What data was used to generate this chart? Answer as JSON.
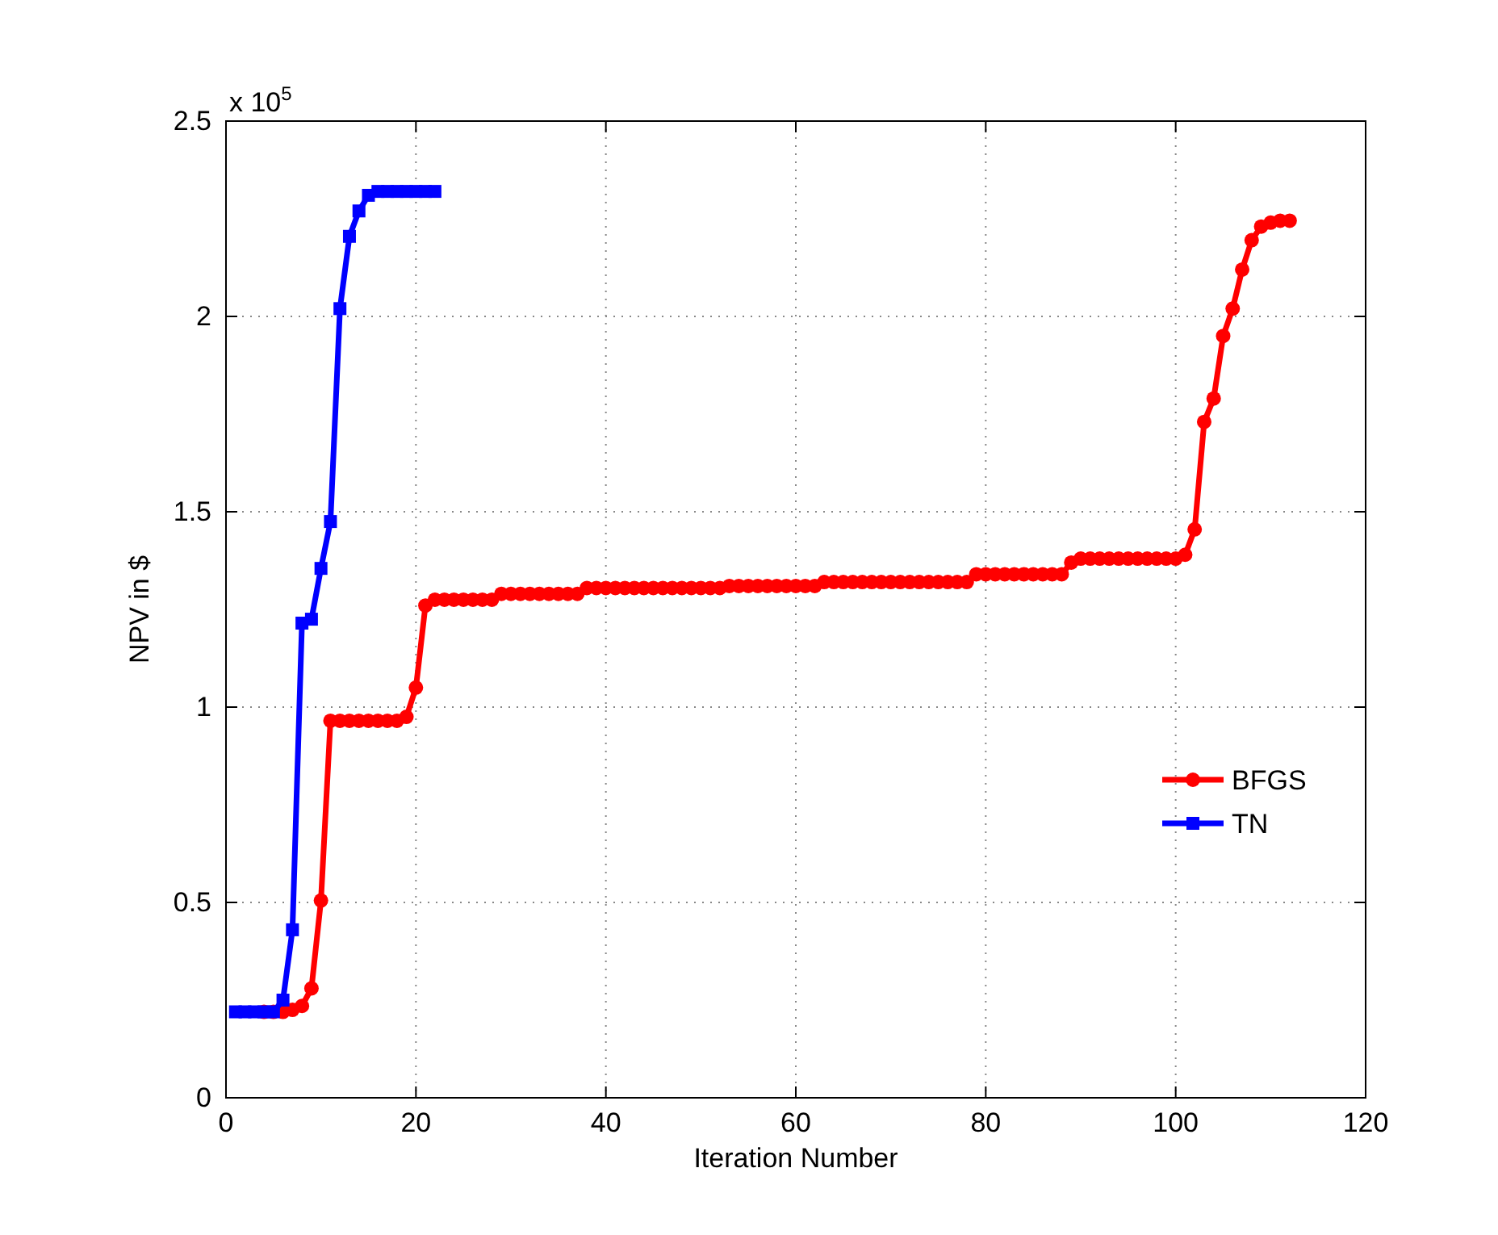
{
  "chart_data": {
    "type": "line",
    "xlabel": "Iteration Number",
    "ylabel": "NPV in $",
    "annotations": [
      "x 10$^{5}$"
    ],
    "xlim": [
      0,
      120
    ],
    "xticks": [
      0,
      20,
      40,
      60,
      80,
      100,
      120
    ],
    "ylim": [
      0,
      2.5
    ],
    "yticks": [
      0,
      0.5,
      1,
      1.5,
      2,
      2.5
    ],
    "grid": true,
    "legend": "right",
    "line_style": "solid",
    "series": [
      {
        "name": "BFGS",
        "color": "#ff0000",
        "marker": "circle",
        "x": [
          4,
          5,
          6,
          7,
          8,
          9,
          10,
          11,
          12,
          13,
          14,
          15,
          16,
          17,
          18,
          19,
          20,
          21,
          22,
          23,
          24,
          25,
          26,
          27,
          28,
          29,
          30,
          31,
          32,
          33,
          34,
          35,
          36,
          37,
          38,
          39,
          40,
          41,
          42,
          43,
          44,
          45,
          46,
          47,
          48,
          49,
          50,
          51,
          52,
          53,
          54,
          55,
          56,
          57,
          58,
          59,
          60,
          61,
          62,
          63,
          64,
          65,
          66,
          67,
          68,
          69,
          70,
          71,
          72,
          73,
          74,
          75,
          76,
          77,
          78,
          79,
          80,
          81,
          82,
          83,
          84,
          85,
          86,
          87,
          88,
          89,
          90,
          91,
          92,
          93,
          94,
          95,
          96,
          97,
          98,
          99,
          100,
          101,
          102,
          103,
          104,
          105,
          106,
          107,
          108,
          109,
          110,
          111,
          112
        ],
        "values": [
          0.22,
          0.22,
          0.22,
          0.225,
          0.235,
          0.28,
          0.505,
          0.965,
          0.965,
          0.965,
          0.965,
          0.965,
          0.965,
          0.965,
          0.965,
          0.975,
          1.05,
          1.26,
          1.275,
          1.275,
          1.275,
          1.275,
          1.275,
          1.275,
          1.275,
          1.29,
          1.29,
          1.29,
          1.29,
          1.29,
          1.29,
          1.29,
          1.29,
          1.29,
          1.305,
          1.305,
          1.305,
          1.305,
          1.305,
          1.305,
          1.305,
          1.305,
          1.305,
          1.305,
          1.305,
          1.305,
          1.305,
          1.305,
          1.305,
          1.31,
          1.31,
          1.31,
          1.31,
          1.31,
          1.31,
          1.31,
          1.31,
          1.31,
          1.31,
          1.32,
          1.32,
          1.32,
          1.32,
          1.32,
          1.32,
          1.32,
          1.32,
          1.32,
          1.32,
          1.32,
          1.32,
          1.32,
          1.32,
          1.32,
          1.32,
          1.34,
          1.34,
          1.34,
          1.34,
          1.34,
          1.34,
          1.34,
          1.34,
          1.34,
          1.34,
          1.37,
          1.38,
          1.38,
          1.38,
          1.38,
          1.38,
          1.38,
          1.38,
          1.38,
          1.38,
          1.38,
          1.38,
          1.39,
          1.455,
          1.73,
          1.79,
          1.95,
          2.02,
          2.12,
          2.195,
          2.23,
          2.24,
          2.245,
          2.245
        ]
      },
      {
        "name": "TN",
        "color": "#0000ff",
        "marker": "square",
        "x": [
          1,
          2,
          3,
          4,
          5,
          6,
          7,
          8,
          9,
          10,
          11,
          12,
          13,
          14,
          15,
          16,
          17,
          18,
          19,
          20,
          21,
          22
        ],
        "values": [
          0.22,
          0.22,
          0.22,
          0.22,
          0.22,
          0.25,
          0.43,
          1.215,
          1.225,
          1.355,
          1.475,
          2.02,
          2.205,
          2.27,
          2.31,
          2.32,
          2.32,
          2.32,
          2.32,
          2.32,
          2.32,
          2.32
        ]
      }
    ]
  }
}
